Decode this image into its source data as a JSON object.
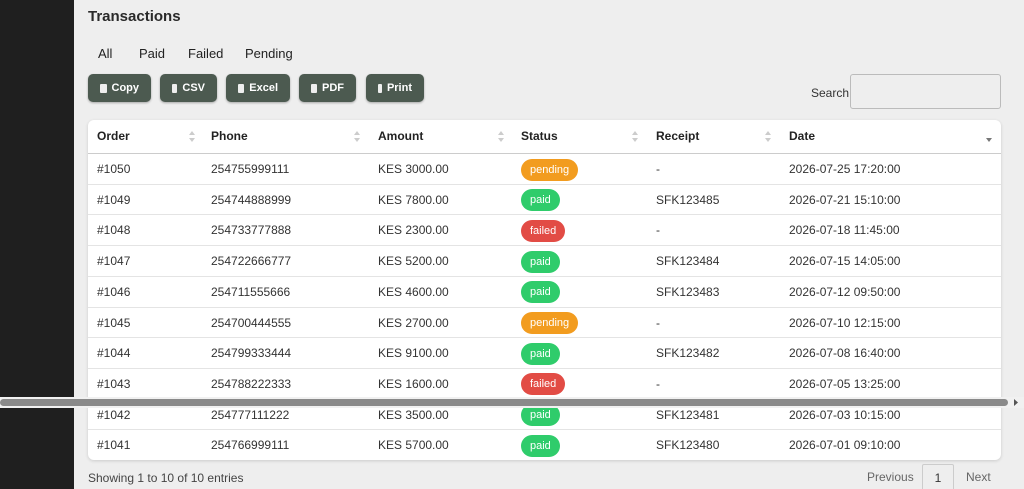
{
  "header": {
    "title": "Transactions"
  },
  "filters": [
    "All",
    "Paid",
    "Failed",
    "Pending"
  ],
  "buttons": [
    "Copy",
    "CSV",
    "Excel",
    "PDF",
    "Print"
  ],
  "search_label": "Search:",
  "table": {
    "columns": [
      "Order",
      "Phone",
      "Amount",
      "Status",
      "Receipt",
      "Date"
    ],
    "rows": [
      [
        "#1050",
        "254755999111",
        "KES 3000.00",
        "pending",
        "-",
        "2026-07-25 17:20:00"
      ],
      [
        "#1049",
        "254744888999",
        "KES 7800.00",
        "paid",
        "SFK123485",
        "2026-07-21 15:10:00"
      ],
      [
        "#1048",
        "254733777888",
        "KES 2300.00",
        "failed",
        "-",
        "2026-07-18 11:45:00"
      ],
      [
        "#1047",
        "254722666777",
        "KES 5200.00",
        "paid",
        "SFK123484",
        "2026-07-15 14:05:00"
      ],
      [
        "#1046",
        "254711555666",
        "KES 4600.00",
        "paid",
        "SFK123483",
        "2026-07-12 09:50:00"
      ],
      [
        "#1045",
        "254700444555",
        "KES 2700.00",
        "pending",
        "-",
        "2026-07-10 12:15:00"
      ],
      [
        "#1044",
        "254799333444",
        "KES 9100.00",
        "paid",
        "SFK123482",
        "2026-07-08 16:40:00"
      ],
      [
        "#1043",
        "254788222333",
        "KES 1600.00",
        "failed",
        "-",
        "2026-07-05 13:25:00"
      ],
      [
        "#1042",
        "254777111222",
        "KES 3500.00",
        "paid",
        "SFK123481",
        "2026-07-03 10:15:00"
      ],
      [
        "#1041",
        "254766999111",
        "KES 5700.00",
        "paid",
        "SFK123480",
        "2026-07-01 09:10:00"
      ]
    ],
    "status_colors": {
      "pending": "#f29c1f",
      "paid": "#2fcc6b",
      "failed": "#e24c45"
    }
  },
  "footer": {
    "info": "Showing 1 to 10 of 10 entries"
  },
  "pagination": {
    "previous": "Previous",
    "page": "1",
    "next": "Next"
  }
}
